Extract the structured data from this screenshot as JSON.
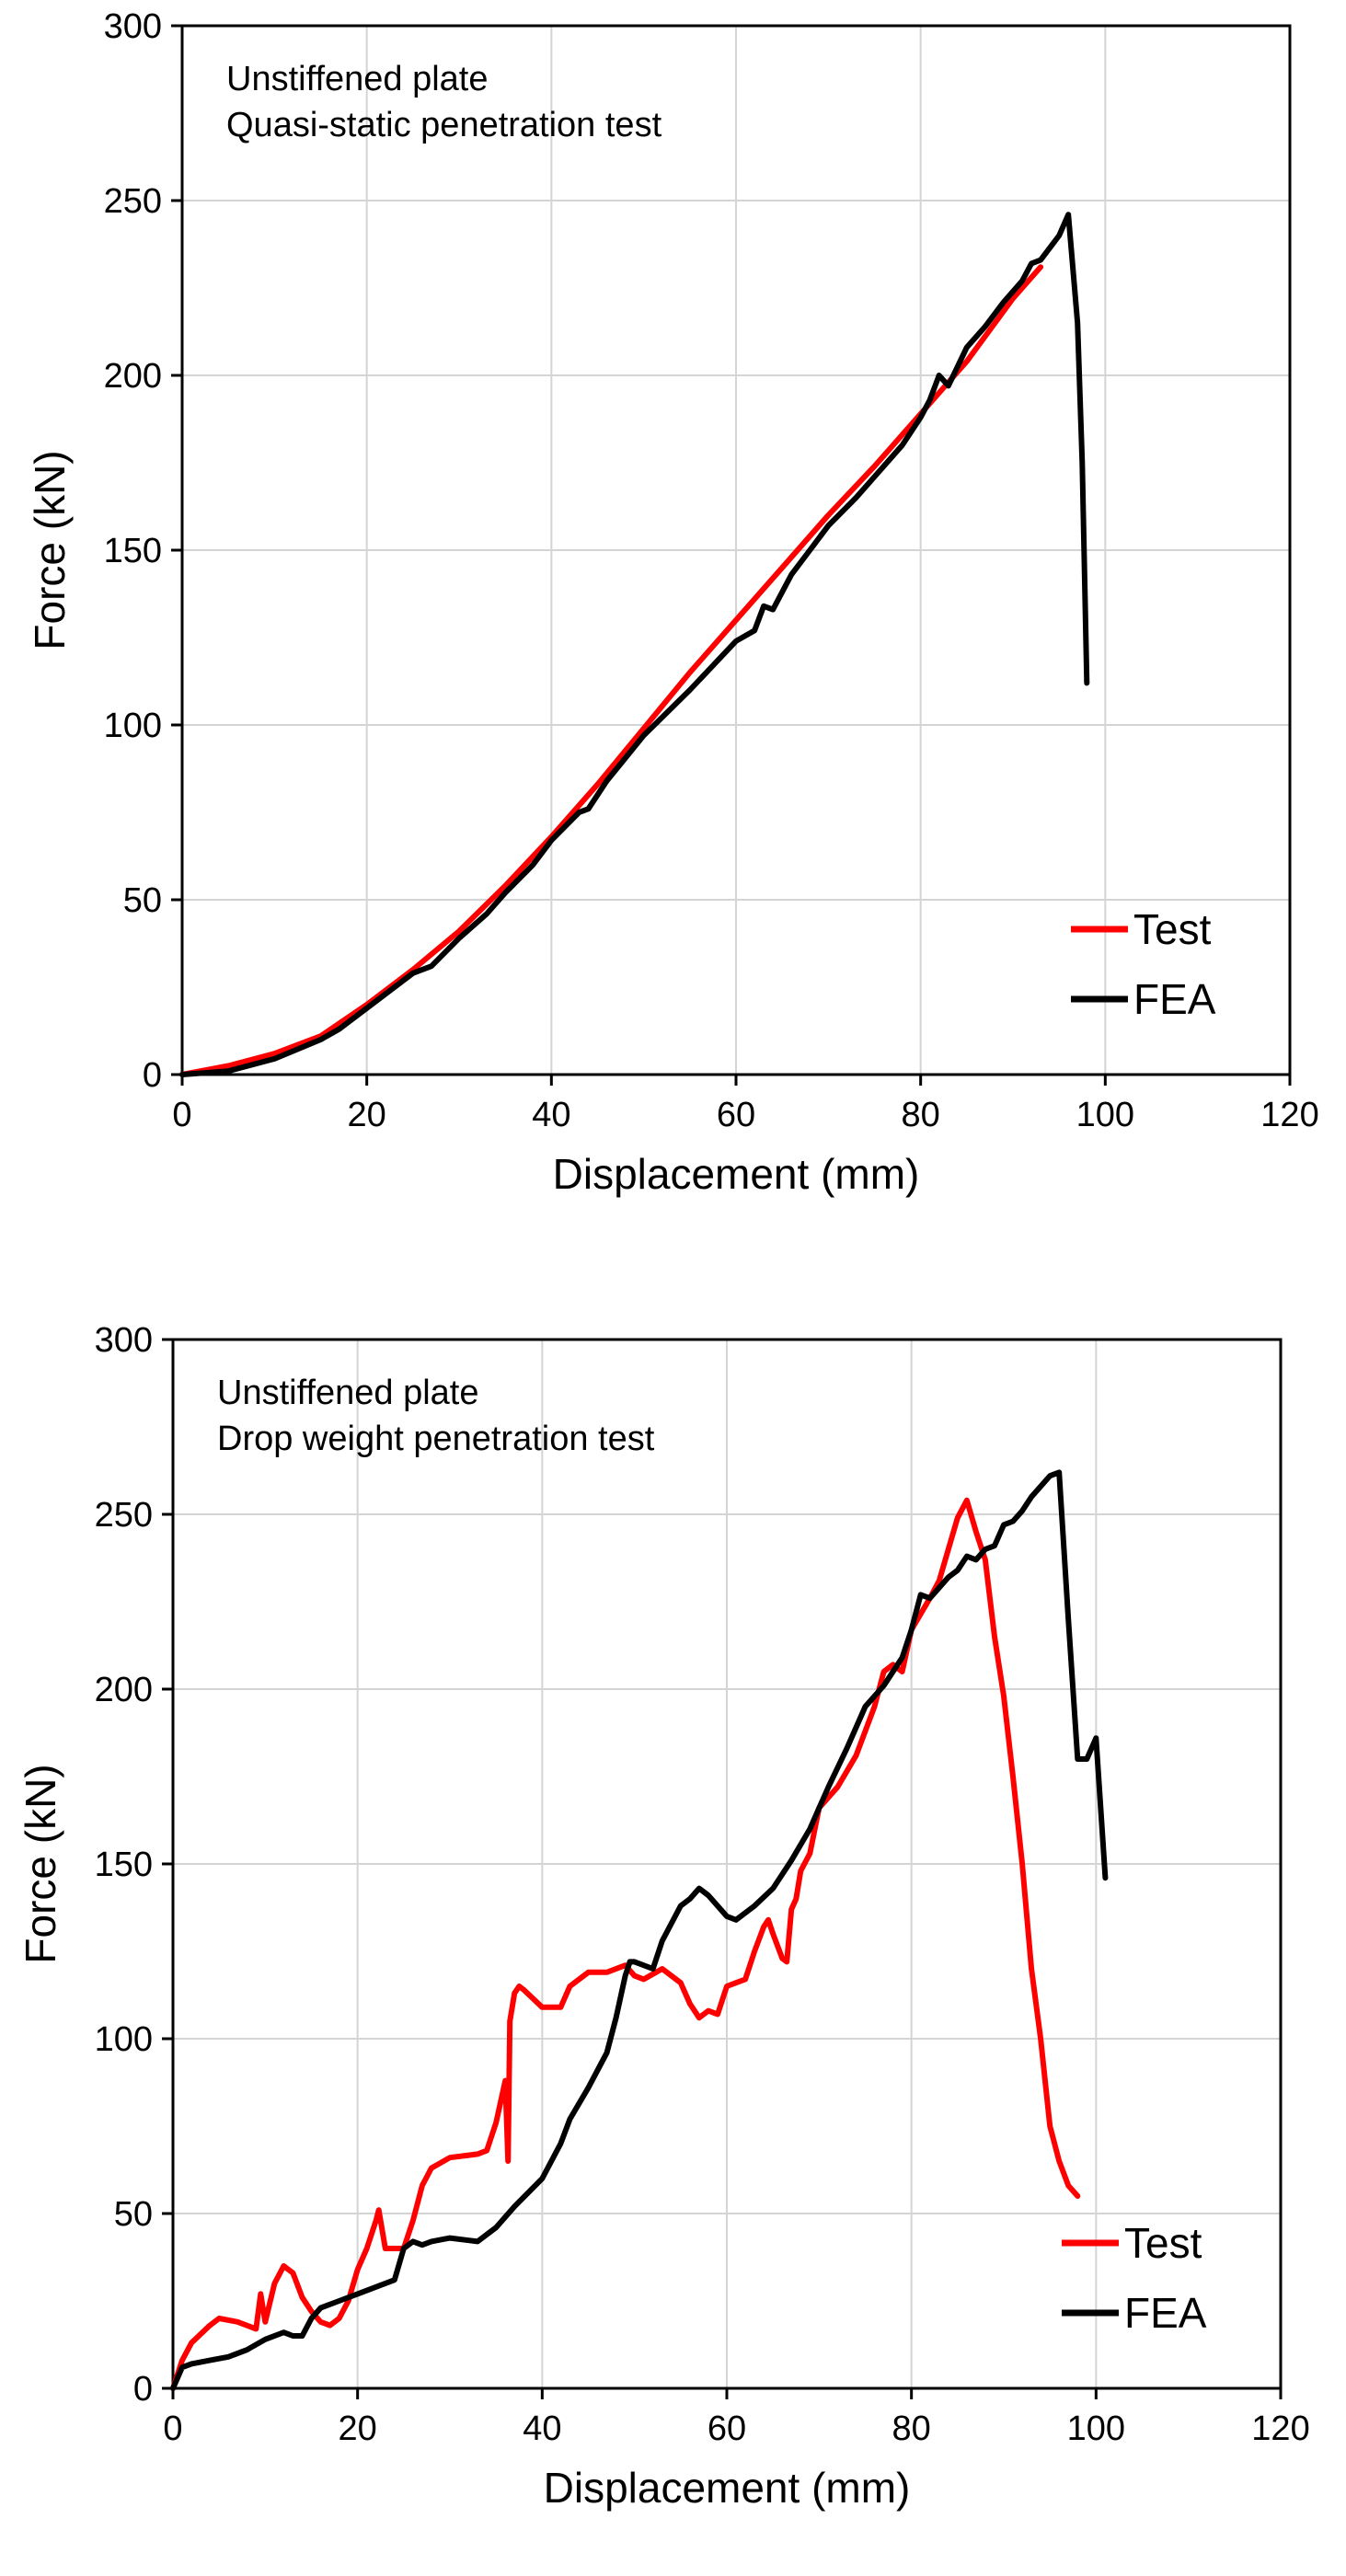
{
  "chart_data": [
    {
      "type": "line",
      "title": "",
      "annotation": [
        "Unstiffened plate",
        "Quasi-static penetration test"
      ],
      "xlabel": "Displacement (mm)",
      "ylabel": "Force (kN)",
      "xlim": [
        0,
        120
      ],
      "ylim": [
        0,
        300
      ],
      "xticks": [
        0,
        20,
        40,
        60,
        80,
        100,
        120
      ],
      "yticks": [
        0,
        50,
        100,
        150,
        200,
        250,
        300
      ],
      "grid": true,
      "legend_position": "bottom-right",
      "series": [
        {
          "name": "Test",
          "color": "#ff0000",
          "points": [
            [
              0,
              0
            ],
            [
              5,
              2.5
            ],
            [
              10,
              6
            ],
            [
              15,
              11
            ],
            [
              20,
              20
            ],
            [
              25,
              30
            ],
            [
              30,
              41
            ],
            [
              35,
              54
            ],
            [
              40,
              68
            ],
            [
              45,
              83
            ],
            [
              50,
              99
            ],
            [
              55,
              115
            ],
            [
              60,
              130
            ],
            [
              65,
              145
            ],
            [
              70,
              160
            ],
            [
              75,
              174
            ],
            [
              80,
              189
            ],
            [
              85,
              204
            ],
            [
              90,
              222
            ],
            [
              93,
              231
            ]
          ]
        },
        {
          "name": "FEA",
          "color": "#000000",
          "points": [
            [
              0,
              0
            ],
            [
              5,
              1
            ],
            [
              10,
              4.5
            ],
            [
              15,
              10
            ],
            [
              17,
              13
            ],
            [
              20,
              19
            ],
            [
              25,
              29
            ],
            [
              27,
              31
            ],
            [
              30,
              39
            ],
            [
              33,
              46
            ],
            [
              35,
              52
            ],
            [
              38,
              60
            ],
            [
              40,
              67
            ],
            [
              43,
              75
            ],
            [
              44,
              76
            ],
            [
              46,
              84
            ],
            [
              50,
              97
            ],
            [
              55,
              110
            ],
            [
              60,
              124
            ],
            [
              62,
              127
            ],
            [
              63,
              134
            ],
            [
              64,
              133
            ],
            [
              66,
              143
            ],
            [
              68,
              150
            ],
            [
              70,
              157
            ],
            [
              73,
              165
            ],
            [
              75,
              171
            ],
            [
              78,
              180
            ],
            [
              80,
              188
            ],
            [
              81,
              193
            ],
            [
              82,
              200
            ],
            [
              83,
              197
            ],
            [
              85,
              208
            ],
            [
              87,
              214
            ],
            [
              89,
              221
            ],
            [
              91,
              227
            ],
            [
              92,
              232
            ],
            [
              93,
              233
            ],
            [
              95,
              240
            ],
            [
              96,
              246
            ],
            [
              97,
              215
            ],
            [
              97.5,
              175
            ],
            [
              98,
              112
            ]
          ]
        }
      ]
    },
    {
      "type": "line",
      "title": "",
      "annotation": [
        "Unstiffened plate",
        "Drop weight penetration test"
      ],
      "xlabel": "Displacement (mm)",
      "ylabel": "Force (kN)",
      "xlim": [
        0,
        120
      ],
      "ylim": [
        0,
        300
      ],
      "xticks": [
        0,
        20,
        40,
        60,
        80,
        100,
        120
      ],
      "yticks": [
        0,
        50,
        100,
        150,
        200,
        250,
        300
      ],
      "grid": true,
      "legend_position": "bottom-right",
      "series": [
        {
          "name": "Test",
          "color": "#ff0000",
          "points": [
            [
              0,
              0
            ],
            [
              1,
              8
            ],
            [
              2,
              13
            ],
            [
              4,
              18
            ],
            [
              5,
              20
            ],
            [
              7,
              19
            ],
            [
              9,
              17
            ],
            [
              9.5,
              27
            ],
            [
              10,
              19
            ],
            [
              11,
              30
            ],
            [
              12,
              35
            ],
            [
              13,
              33
            ],
            [
              14,
              26
            ],
            [
              15,
              22
            ],
            [
              16,
              19
            ],
            [
              17,
              18
            ],
            [
              18,
              20
            ],
            [
              19,
              25
            ],
            [
              20,
              34
            ],
            [
              21,
              40
            ],
            [
              22,
              48
            ],
            [
              22.3,
              51
            ],
            [
              23,
              40
            ],
            [
              25,
              40
            ],
            [
              26,
              48
            ],
            [
              27,
              58
            ],
            [
              28,
              63
            ],
            [
              30,
              66
            ],
            [
              33,
              67
            ],
            [
              34,
              68
            ],
            [
              35,
              76
            ],
            [
              36,
              88
            ],
            [
              36.3,
              65
            ],
            [
              36.5,
              105
            ],
            [
              37,
              113
            ],
            [
              37.5,
              115
            ],
            [
              38,
              114
            ],
            [
              40,
              109
            ],
            [
              42,
              109
            ],
            [
              43,
              115
            ],
            [
              45,
              119
            ],
            [
              47,
              119
            ],
            [
              49,
              121
            ],
            [
              50,
              118
            ],
            [
              51,
              117
            ],
            [
              53,
              120
            ],
            [
              55,
              116
            ],
            [
              56,
              110
            ],
            [
              57,
              106
            ],
            [
              58,
              108
            ],
            [
              59,
              107
            ],
            [
              60,
              115
            ],
            [
              61,
              116
            ],
            [
              62,
              117
            ],
            [
              63,
              125
            ],
            [
              64,
              132
            ],
            [
              64.5,
              134
            ],
            [
              65,
              130
            ],
            [
              66,
              123
            ],
            [
              66.5,
              122
            ],
            [
              67,
              137
            ],
            [
              67.5,
              140
            ],
            [
              68,
              148
            ],
            [
              69,
              153
            ],
            [
              70,
              166
            ],
            [
              72,
              172
            ],
            [
              74,
              181
            ],
            [
              76,
              195
            ],
            [
              77,
              205
            ],
            [
              78,
              207
            ],
            [
              79,
              205
            ],
            [
              80,
              217
            ],
            [
              82,
              226
            ],
            [
              83,
              231
            ],
            [
              84,
              240
            ],
            [
              85,
              249
            ],
            [
              86,
              254
            ],
            [
              87,
              245
            ],
            [
              88,
              237
            ],
            [
              89,
              215
            ],
            [
              90,
              198
            ],
            [
              91,
              175
            ],
            [
              92,
              150
            ],
            [
              93,
              120
            ],
            [
              94,
              100
            ],
            [
              95,
              75
            ],
            [
              96,
              65
            ],
            [
              97,
              58
            ],
            [
              98,
              55
            ]
          ]
        },
        {
          "name": "FEA",
          "color": "#000000",
          "points": [
            [
              0,
              0
            ],
            [
              1,
              6
            ],
            [
              2,
              7
            ],
            [
              4,
              8
            ],
            [
              6,
              9
            ],
            [
              8,
              11
            ],
            [
              10,
              14
            ],
            [
              12,
              16
            ],
            [
              13,
              15
            ],
            [
              14,
              15
            ],
            [
              15,
              20
            ],
            [
              16,
              23
            ],
            [
              18,
              25
            ],
            [
              20,
              27
            ],
            [
              22,
              29
            ],
            [
              24,
              31
            ],
            [
              25,
              40
            ],
            [
              26,
              42
            ],
            [
              27,
              41
            ],
            [
              28,
              42
            ],
            [
              30,
              43
            ],
            [
              33,
              42
            ],
            [
              35,
              46
            ],
            [
              37,
              52
            ],
            [
              40,
              60
            ],
            [
              42,
              70
            ],
            [
              43,
              77
            ],
            [
              45,
              86
            ],
            [
              47,
              96
            ],
            [
              48,
              106
            ],
            [
              49,
              118
            ],
            [
              49.5,
              122
            ],
            [
              50,
              122
            ],
            [
              52,
              120
            ],
            [
              53,
              128
            ],
            [
              55,
              138
            ],
            [
              56,
              140
            ],
            [
              57,
              143
            ],
            [
              58,
              141
            ],
            [
              60,
              135
            ],
            [
              61,
              134
            ],
            [
              63,
              138
            ],
            [
              65,
              143
            ],
            [
              67,
              151
            ],
            [
              69,
              160
            ],
            [
              71,
              172
            ],
            [
              73,
              183
            ],
            [
              75,
              195
            ],
            [
              77,
              201
            ],
            [
              79,
              209
            ],
            [
              80,
              217
            ],
            [
              81,
              227
            ],
            [
              82,
              226
            ],
            [
              84,
              232
            ],
            [
              85,
              234
            ],
            [
              86,
              238
            ],
            [
              87,
              237
            ],
            [
              88,
              240
            ],
            [
              89,
              241
            ],
            [
              90,
              247
            ],
            [
              91,
              248
            ],
            [
              92,
              251
            ],
            [
              93,
              255
            ],
            [
              95,
              261
            ],
            [
              96,
              262
            ],
            [
              97,
              220
            ],
            [
              98,
              180
            ],
            [
              99,
              180
            ],
            [
              100,
              186
            ],
            [
              101,
              146
            ]
          ]
        }
      ]
    }
  ]
}
